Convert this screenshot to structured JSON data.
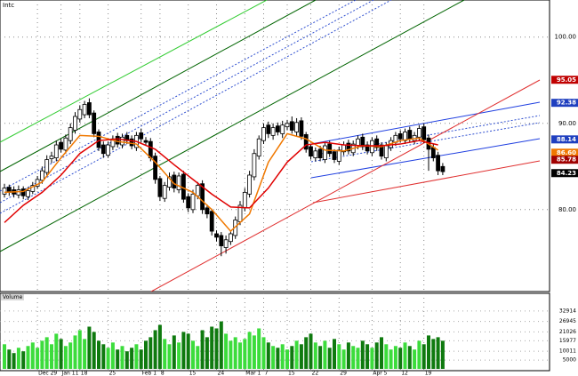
{
  "chart_data": [
    {
      "type": "candlestick",
      "title": "Intc",
      "categories": [
        null,
        null,
        null,
        null,
        null,
        null,
        null,
        "Dec 29",
        null,
        null,
        null,
        null,
        "Jan 11",
        null,
        null,
        null,
        "18",
        null,
        null,
        null,
        null,
        null,
        "25",
        null,
        null,
        null,
        null,
        null,
        null,
        "Feb 1",
        null,
        null,
        null,
        "8",
        null,
        null,
        null,
        null,
        null,
        "15",
        null,
        null,
        null,
        null,
        null,
        "24",
        null,
        null,
        null,
        null,
        null,
        "Mar 1",
        null,
        null,
        null,
        "7",
        null,
        null,
        null,
        null,
        "15",
        null,
        null,
        null,
        null,
        "22",
        null,
        null,
        null,
        null,
        null,
        "29",
        null,
        null,
        null,
        null,
        null,
        null,
        "Apr 5",
        null,
        null,
        null,
        null,
        null,
        "12",
        null,
        null,
        null,
        null,
        "19",
        null,
        null,
        null,
        null
      ],
      "open": [
        81.8,
        82.6,
        82.3,
        81.7,
        82.4,
        81.5,
        82.1,
        82.7,
        83.4,
        84.3,
        85.9,
        86.0,
        87.8,
        86.9,
        88.0,
        89.2,
        90.5,
        91.0,
        92.4,
        91.2,
        89.0,
        87.5,
        86.3,
        87.3,
        88.5,
        87.5,
        88.6,
        88.2,
        87.2,
        88.9,
        88.0,
        87.9,
        86.2,
        83.6,
        81.3,
        82.6,
        84.0,
        82.3,
        84.1,
        81.5,
        80.0,
        81.6,
        83.0,
        80.2,
        79.8,
        77.2,
        77.0,
        75.6,
        76.3,
        77.0,
        78.6,
        80.2,
        81.8,
        83.8,
        86.2,
        88.0,
        89.8,
        88.6,
        89.7,
        88.8,
        89.6,
        90.2,
        89.0,
        90.3,
        88.7,
        87.3,
        86.0,
        87.0,
        85.8,
        87.6,
        86.7,
        85.6,
        86.7,
        87.7,
        86.6,
        87.4,
        88.4,
        87.5,
        86.6,
        88.2,
        87.5,
        86.0,
        87.2,
        87.8,
        88.8,
        88.0,
        89.2,
        88.0,
        88.4,
        89.6,
        88.3,
        87.2,
        86.3,
        85.0
      ],
      "high": [
        83.0,
        82.9,
        82.7,
        82.8,
        82.7,
        82.6,
        83.2,
        83.9,
        85.0,
        86.3,
        86.7,
        88.0,
        88.2,
        88.7,
        90.0,
        91.3,
        92.1,
        92.6,
        92.9,
        91.5,
        89.3,
        87.9,
        87.9,
        88.6,
        88.9,
        88.8,
        89.0,
        88.6,
        89.0,
        89.4,
        88.4,
        88.3,
        86.6,
        83.9,
        83.2,
        84.3,
        84.4,
        84.3,
        84.5,
        81.9,
        82.3,
        83.2,
        83.4,
        80.6,
        80.1,
        77.6,
        77.4,
        77.0,
        77.6,
        79.2,
        81.0,
        82.5,
        84.5,
        87.0,
        88.6,
        90.0,
        90.2,
        90.0,
        90.1,
        90.3,
        90.4,
        90.8,
        90.6,
        90.7,
        89.0,
        87.6,
        87.2,
        87.4,
        87.8,
        88.0,
        87.0,
        87.3,
        87.9,
        88.1,
        88.0,
        88.6,
        88.8,
        87.9,
        88.4,
        88.6,
        87.8,
        87.8,
        88.4,
        89.0,
        89.2,
        89.4,
        89.6,
        89.0,
        89.8,
        90.0,
        88.7,
        87.6,
        86.7,
        85.4
      ],
      "low": [
        81.4,
        81.6,
        81.4,
        81.3,
        81.2,
        81.1,
        81.8,
        82.4,
        83.0,
        84.0,
        85.4,
        85.6,
        86.6,
        86.5,
        87.6,
        88.8,
        90.1,
        90.6,
        90.6,
        88.4,
        86.8,
        86.0,
        86.0,
        86.9,
        87.2,
        87.1,
        87.6,
        87.0,
        86.8,
        87.8,
        87.4,
        85.6,
        83.0,
        81.0,
        80.9,
        82.2,
        82.0,
        81.9,
        80.8,
        79.7,
        79.6,
        81.2,
        79.5,
        79.0,
        77.0,
        76.3,
        74.6,
        74.9,
        75.9,
        76.6,
        78.2,
        79.8,
        81.4,
        83.4,
        85.8,
        87.6,
        88.3,
        88.1,
        88.6,
        88.3,
        89.2,
        88.8,
        88.5,
        88.1,
        86.6,
        85.8,
        85.6,
        85.6,
        85.4,
        86.1,
        85.4,
        85.2,
        86.3,
        86.4,
        86.2,
        87.0,
        86.9,
        86.4,
        86.2,
        86.8,
        85.8,
        85.6,
        86.8,
        87.4,
        87.8,
        87.6,
        87.8,
        87.6,
        88.0,
        87.7,
        84.5,
        85.6,
        84.0,
        84.0
      ],
      "close": [
        82.5,
        82.0,
        81.8,
        82.3,
        81.6,
        82.2,
        82.8,
        83.5,
        84.5,
        85.8,
        86.2,
        87.5,
        87.0,
        88.3,
        89.5,
        90.8,
        91.6,
        92.2,
        91.0,
        88.8,
        87.2,
        86.5,
        87.5,
        88.2,
        87.6,
        88.4,
        88.0,
        87.4,
        88.6,
        88.2,
        87.8,
        86.0,
        83.5,
        81.5,
        82.8,
        83.8,
        82.5,
        83.9,
        81.2,
        80.2,
        81.8,
        82.8,
        80.0,
        79.5,
        77.5,
        76.8,
        75.8,
        76.5,
        77.2,
        78.8,
        80.5,
        82.0,
        84.0,
        86.5,
        88.2,
        89.5,
        88.8,
        89.5,
        89.0,
        89.8,
        90.0,
        89.2,
        90.1,
        88.5,
        87.0,
        86.2,
        86.8,
        86.0,
        87.4,
        86.5,
        85.8,
        86.9,
        87.5,
        86.8,
        87.6,
        88.2,
        87.3,
        86.8,
        88.0,
        87.2,
        86.2,
        87.4,
        88.0,
        88.6,
        88.2,
        89.0,
        88.2,
        88.6,
        89.4,
        88.1,
        87.0,
        86.0,
        84.5,
        84.4
      ],
      "up_fill": "#ffffff",
      "down_fill": "#000000",
      "ylim": [
        70.5,
        104.3
      ],
      "yticks": [
        {
          "value": 100,
          "label": "100.00"
        },
        {
          "value": 90,
          "label": "90.00"
        },
        {
          "value": 80,
          "label": "80.00"
        }
      ],
      "grid": true,
      "lines": [
        {
          "color": "#f07800",
          "x": [
            0,
            4,
            8,
            12,
            16,
            20,
            24,
            28,
            32,
            36,
            40,
            44,
            48,
            52,
            56,
            60,
            64,
            68,
            72,
            76,
            80,
            84,
            88,
            92
          ],
          "values": [
            82.0,
            82.1,
            83.2,
            86.0,
            88.6,
            88.5,
            87.9,
            87.6,
            85.5,
            83.0,
            82.0,
            80.0,
            77.5,
            79.5,
            85.5,
            88.8,
            88.2,
            86.9,
            86.8,
            87.4,
            87.3,
            88.0,
            88.3,
            86.9
          ]
        },
        {
          "color": "#e00000",
          "x": [
            0,
            4,
            8,
            12,
            16,
            20,
            24,
            28,
            32,
            36,
            40,
            44,
            48,
            52,
            56,
            60,
            64,
            68,
            72,
            76,
            80,
            84,
            88,
            92
          ],
          "values": [
            78.5,
            80.5,
            82.0,
            84.0,
            86.5,
            88.0,
            88.2,
            87.9,
            87.0,
            85.2,
            83.5,
            81.8,
            80.3,
            80.2,
            82.5,
            85.5,
            87.5,
            87.8,
            87.5,
            87.4,
            87.4,
            87.6,
            88.0,
            87.5
          ]
        }
      ],
      "price_tags": [
        {
          "value": 95.05,
          "label": "95.05",
          "color": "#c00000"
        },
        {
          "value": 92.38,
          "label": "92.38",
          "color": "#1f3fbf"
        },
        {
          "value": 88.14,
          "label": "88.14",
          "color": "#1f3fbf"
        },
        {
          "value": 86.6,
          "label": "86.60",
          "color": "#f07800"
        },
        {
          "value": 85.78,
          "label": "85.78",
          "color": "#a00000"
        },
        {
          "value": 84.23,
          "label": "84.23",
          "color": "#000000"
        }
      ]
    },
    {
      "type": "volume",
      "title": "Volume",
      "values": [
        14000,
        11000,
        9000,
        12000,
        10000,
        13000,
        15000,
        12000,
        16000,
        18000,
        14000,
        20000,
        17000,
        13000,
        15000,
        19000,
        22000,
        17000,
        24000,
        21000,
        16000,
        14000,
        12000,
        15000,
        11000,
        13000,
        10000,
        12000,
        14000,
        11000,
        16000,
        18000,
        22000,
        25000,
        17000,
        14000,
        19000,
        15000,
        21000,
        20000,
        16000,
        13000,
        22000,
        18000,
        24000,
        23000,
        27000,
        20000,
        16000,
        18000,
        15000,
        17000,
        21000,
        19000,
        23000,
        18000,
        15000,
        13000,
        12000,
        14000,
        11000,
        13000,
        16000,
        14000,
        18000,
        20000,
        15000,
        13000,
        16000,
        12000,
        17000,
        14000,
        11000,
        15000,
        13000,
        12000,
        16000,
        14000,
        12000,
        15000,
        18000,
        14000,
        11000,
        13000,
        12000,
        15000,
        13000,
        11000,
        16000,
        14000,
        19000,
        17000,
        18000,
        16000
      ],
      "up_color": "#3cdc3c",
      "down_color": "#0f7a0f",
      "ylim": [
        0,
        38900
      ],
      "yticks": [
        32914,
        26945,
        21026,
        15977,
        10011,
        5000
      ]
    }
  ]
}
